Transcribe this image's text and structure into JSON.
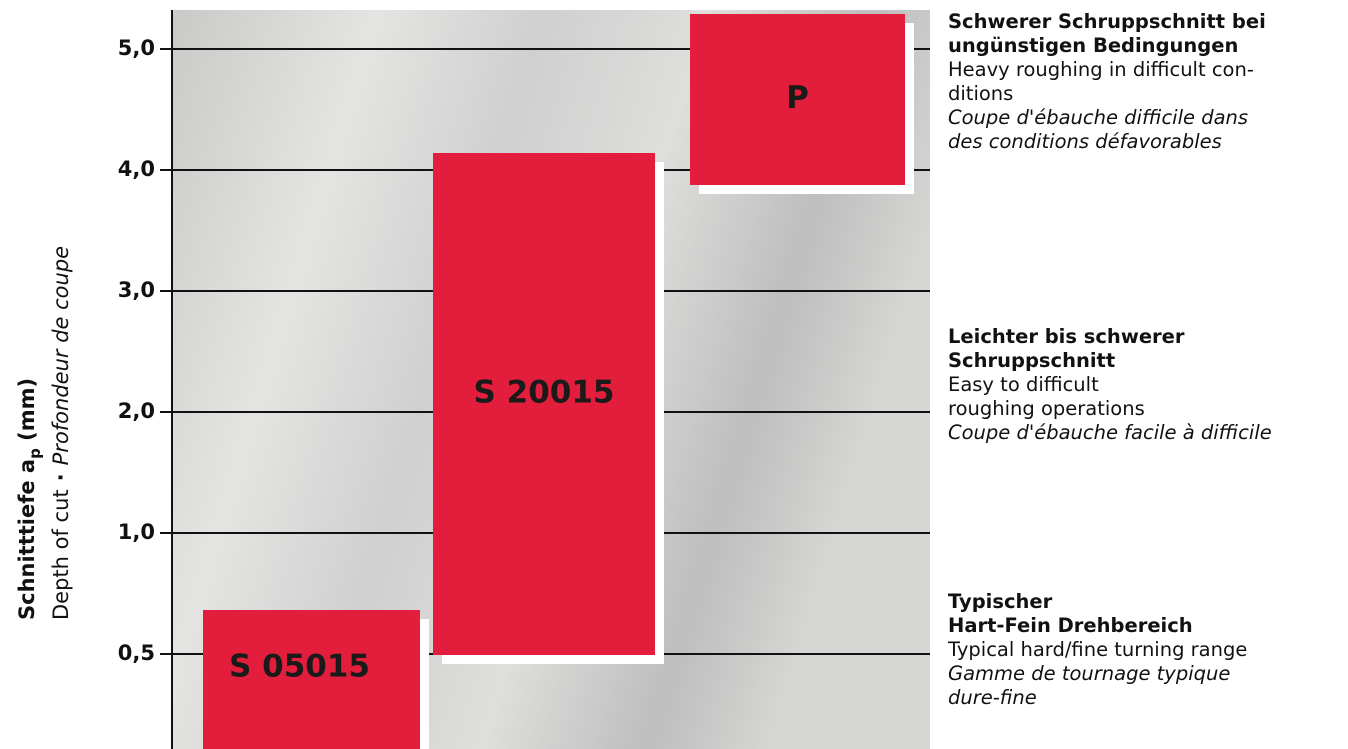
{
  "axis_title": {
    "main": "Schnitttiefe a",
    "sub": "p",
    "unit": " (mm)",
    "line2_a": "Depth of cut",
    "separator": "·",
    "line2_b": "Profondeur de coupe"
  },
  "ticks": [
    "5,0",
    "4,0",
    "3,0",
    "2,0",
    "1,0",
    "0,5"
  ],
  "boxes": [
    {
      "label": "S 05015"
    },
    {
      "label": "S 20015"
    },
    {
      "label": "P"
    }
  ],
  "descriptions": [
    {
      "de": [
        "Schwerer Schruppschnitt bei",
        "ungünstigen Bedingungen"
      ],
      "en": [
        "Heavy roughing in difficult con-",
        "ditions"
      ],
      "fr": [
        "Coupe d'ébauche difficile dans",
        "des conditions défavorables"
      ]
    },
    {
      "de": [
        "Leichter bis schwerer",
        "Schruppschnitt"
      ],
      "en": [
        "Easy to difficult",
        "roughing operations"
      ],
      "fr": [
        "Coupe d'ébauche facile à difficile"
      ]
    },
    {
      "de": [
        "Typischer",
        "Hart-Fein Drehbereich"
      ],
      "en": [
        "Typical hard/fine turning range"
      ],
      "fr": [
        "Gamme de tournage typique",
        "dure-fine"
      ]
    }
  ]
}
